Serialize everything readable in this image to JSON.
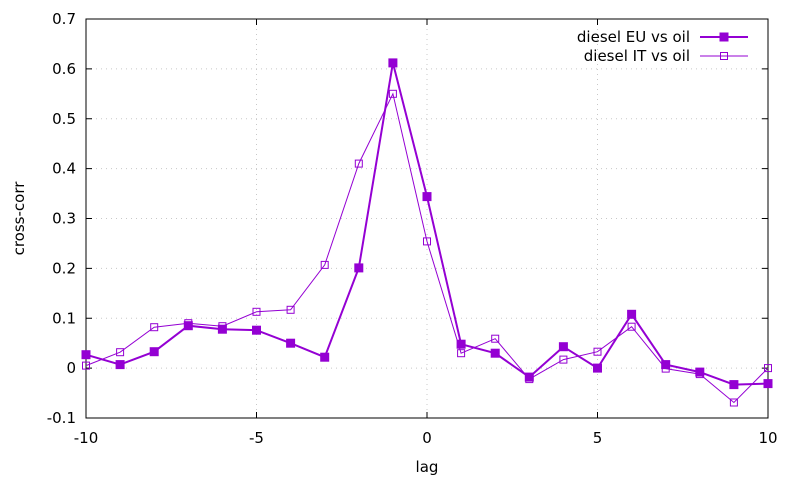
{
  "chart_data": {
    "type": "line",
    "title": "",
    "xlabel": "lag",
    "ylabel": "cross-corr",
    "xlim": [
      -10,
      10
    ],
    "ylim": [
      -0.1,
      0.7
    ],
    "xticks": [
      -10,
      -5,
      0,
      5,
      10
    ],
    "xtick_labels": [
      "-10",
      "-5",
      "0",
      "5",
      "10"
    ],
    "yticks": [
      -0.1,
      0,
      0.1,
      0.2,
      0.3,
      0.4,
      0.5,
      0.6,
      0.7
    ],
    "ytick_labels": [
      "-0.1",
      "0",
      "0.1",
      "0.2",
      "0.3",
      "0.4",
      "0.5",
      "0.6",
      "0.7"
    ],
    "grid": true,
    "legend_position": "top-right",
    "x": [
      -10,
      -9,
      -8,
      -7,
      -6,
      -5,
      -4,
      -3,
      -2,
      -1,
      0,
      1,
      2,
      3,
      4,
      5,
      6,
      7,
      8,
      9,
      10
    ],
    "series": [
      {
        "name": "diesel EU vs oil",
        "color": "#9400d3",
        "marker": "filled-square",
        "values": [
          0.027,
          0.007,
          0.033,
          0.085,
          0.078,
          0.076,
          0.05,
          0.022,
          0.201,
          0.612,
          0.344,
          0.048,
          0.03,
          -0.018,
          0.043,
          0.0,
          0.108,
          0.007,
          -0.008,
          -0.033,
          -0.031
        ]
      },
      {
        "name": "diesel IT vs oil",
        "color": "#9400d3",
        "marker": "open-square",
        "values": [
          0.005,
          0.032,
          0.082,
          0.09,
          0.084,
          0.113,
          0.117,
          0.207,
          0.41,
          0.55,
          0.254,
          0.03,
          0.059,
          -0.022,
          0.017,
          0.033,
          0.083,
          -0.001,
          -0.012,
          -0.069,
          0.0
        ]
      }
    ]
  }
}
